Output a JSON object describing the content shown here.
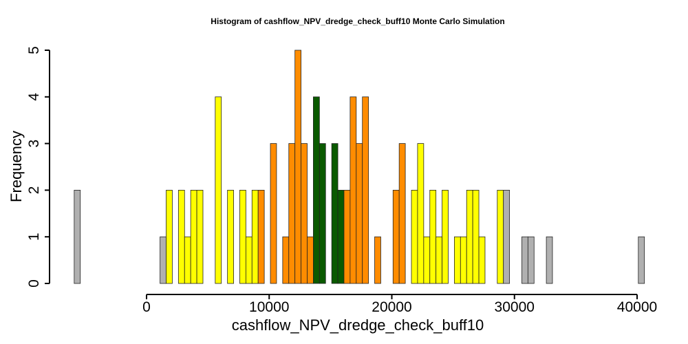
{
  "chart_data": {
    "type": "bar",
    "title": "Histogram of  cashflow_NPV_dredge_check_buff10  Monte Carlo Simulation",
    "xlabel": "cashflow_NPV_dredge_check_buff10",
    "ylabel": "Frequency",
    "xlim": [
      0,
      40000
    ],
    "ylim": [
      0,
      5
    ],
    "xticks": [
      0,
      10000,
      20000,
      30000,
      40000
    ],
    "xtick_labels": [
      "0",
      "10000",
      "20000",
      "30000",
      "40000"
    ],
    "yticks": [
      0,
      1,
      2,
      3,
      4,
      5
    ],
    "ytick_labels": [
      "0",
      "1",
      "2",
      "3",
      "4",
      "5"
    ],
    "colors": {
      "gray": "#b0b0b0",
      "yellow": "#ffff00",
      "orange": "#ff8c00",
      "green": "#0a5a00"
    },
    "bin_start": -5900,
    "bin_width": 500,
    "bins": [
      {
        "count": 2,
        "color": "gray"
      },
      {
        "count": 0,
        "color": "gray"
      },
      {
        "count": 0,
        "color": "gray"
      },
      {
        "count": 0,
        "color": "gray"
      },
      {
        "count": 0,
        "color": "gray"
      },
      {
        "count": 0,
        "color": "gray"
      },
      {
        "count": 0,
        "color": "gray"
      },
      {
        "count": 0,
        "color": "gray"
      },
      {
        "count": 0,
        "color": "gray"
      },
      {
        "count": 0,
        "color": "gray"
      },
      {
        "count": 0,
        "color": "gray"
      },
      {
        "count": 0,
        "color": "gray"
      },
      {
        "count": 0,
        "color": "gray"
      },
      {
        "count": 0,
        "color": "gray"
      },
      {
        "count": 1,
        "color": "gray"
      },
      {
        "count": 2,
        "color": "yellow"
      },
      {
        "count": 0,
        "color": "yellow"
      },
      {
        "count": 2,
        "color": "yellow"
      },
      {
        "count": 1,
        "color": "yellow"
      },
      {
        "count": 2,
        "color": "yellow"
      },
      {
        "count": 2,
        "color": "yellow"
      },
      {
        "count": 0,
        "color": "yellow"
      },
      {
        "count": 0,
        "color": "yellow"
      },
      {
        "count": 4,
        "color": "yellow"
      },
      {
        "count": 0,
        "color": "yellow"
      },
      {
        "count": 2,
        "color": "yellow"
      },
      {
        "count": 0,
        "color": "yellow"
      },
      {
        "count": 2,
        "color": "yellow"
      },
      {
        "count": 1,
        "color": "yellow"
      },
      {
        "count": 2,
        "color": "yellow"
      },
      {
        "count": 2,
        "color": "orange"
      },
      {
        "count": 0,
        "color": "orange"
      },
      {
        "count": 3,
        "color": "orange"
      },
      {
        "count": 0,
        "color": "orange"
      },
      {
        "count": 1,
        "color": "orange"
      },
      {
        "count": 3,
        "color": "orange"
      },
      {
        "count": 5,
        "color": "orange"
      },
      {
        "count": 3,
        "color": "orange"
      },
      {
        "count": 1,
        "color": "orange"
      },
      {
        "count": 4,
        "color": "green"
      },
      {
        "count": 3,
        "color": "green"
      },
      {
        "count": 0,
        "color": "green"
      },
      {
        "count": 3,
        "color": "green"
      },
      {
        "count": 2,
        "color": "green"
      },
      {
        "count": 2,
        "color": "orange"
      },
      {
        "count": 4,
        "color": "orange"
      },
      {
        "count": 3,
        "color": "orange"
      },
      {
        "count": 4,
        "color": "orange"
      },
      {
        "count": 0,
        "color": "orange"
      },
      {
        "count": 1,
        "color": "orange"
      },
      {
        "count": 0,
        "color": "orange"
      },
      {
        "count": 0,
        "color": "orange"
      },
      {
        "count": 2,
        "color": "orange"
      },
      {
        "count": 3,
        "color": "orange"
      },
      {
        "count": 0,
        "color": "orange"
      },
      {
        "count": 2,
        "color": "yellow"
      },
      {
        "count": 3,
        "color": "yellow"
      },
      {
        "count": 1,
        "color": "yellow"
      },
      {
        "count": 2,
        "color": "yellow"
      },
      {
        "count": 1,
        "color": "yellow"
      },
      {
        "count": 2,
        "color": "yellow"
      },
      {
        "count": 0,
        "color": "yellow"
      },
      {
        "count": 1,
        "color": "yellow"
      },
      {
        "count": 1,
        "color": "yellow"
      },
      {
        "count": 2,
        "color": "yellow"
      },
      {
        "count": 2,
        "color": "yellow"
      },
      {
        "count": 1,
        "color": "yellow"
      },
      {
        "count": 0,
        "color": "yellow"
      },
      {
        "count": 0,
        "color": "yellow"
      },
      {
        "count": 2,
        "color": "yellow"
      },
      {
        "count": 2,
        "color": "gray"
      },
      {
        "count": 0,
        "color": "gray"
      },
      {
        "count": 0,
        "color": "gray"
      },
      {
        "count": 1,
        "color": "gray"
      },
      {
        "count": 1,
        "color": "gray"
      },
      {
        "count": 0,
        "color": "gray"
      },
      {
        "count": 0,
        "color": "gray"
      },
      {
        "count": 1,
        "color": "gray"
      },
      {
        "count": 0,
        "color": "gray"
      },
      {
        "count": 0,
        "color": "gray"
      },
      {
        "count": 0,
        "color": "gray"
      },
      {
        "count": 0,
        "color": "gray"
      },
      {
        "count": 0,
        "color": "gray"
      },
      {
        "count": 0,
        "color": "gray"
      },
      {
        "count": 0,
        "color": "gray"
      },
      {
        "count": 0,
        "color": "gray"
      },
      {
        "count": 0,
        "color": "gray"
      },
      {
        "count": 0,
        "color": "gray"
      },
      {
        "count": 0,
        "color": "gray"
      },
      {
        "count": 0,
        "color": "gray"
      },
      {
        "count": 0,
        "color": "gray"
      },
      {
        "count": 0,
        "color": "gray"
      },
      {
        "count": 1,
        "color": "gray"
      }
    ]
  }
}
